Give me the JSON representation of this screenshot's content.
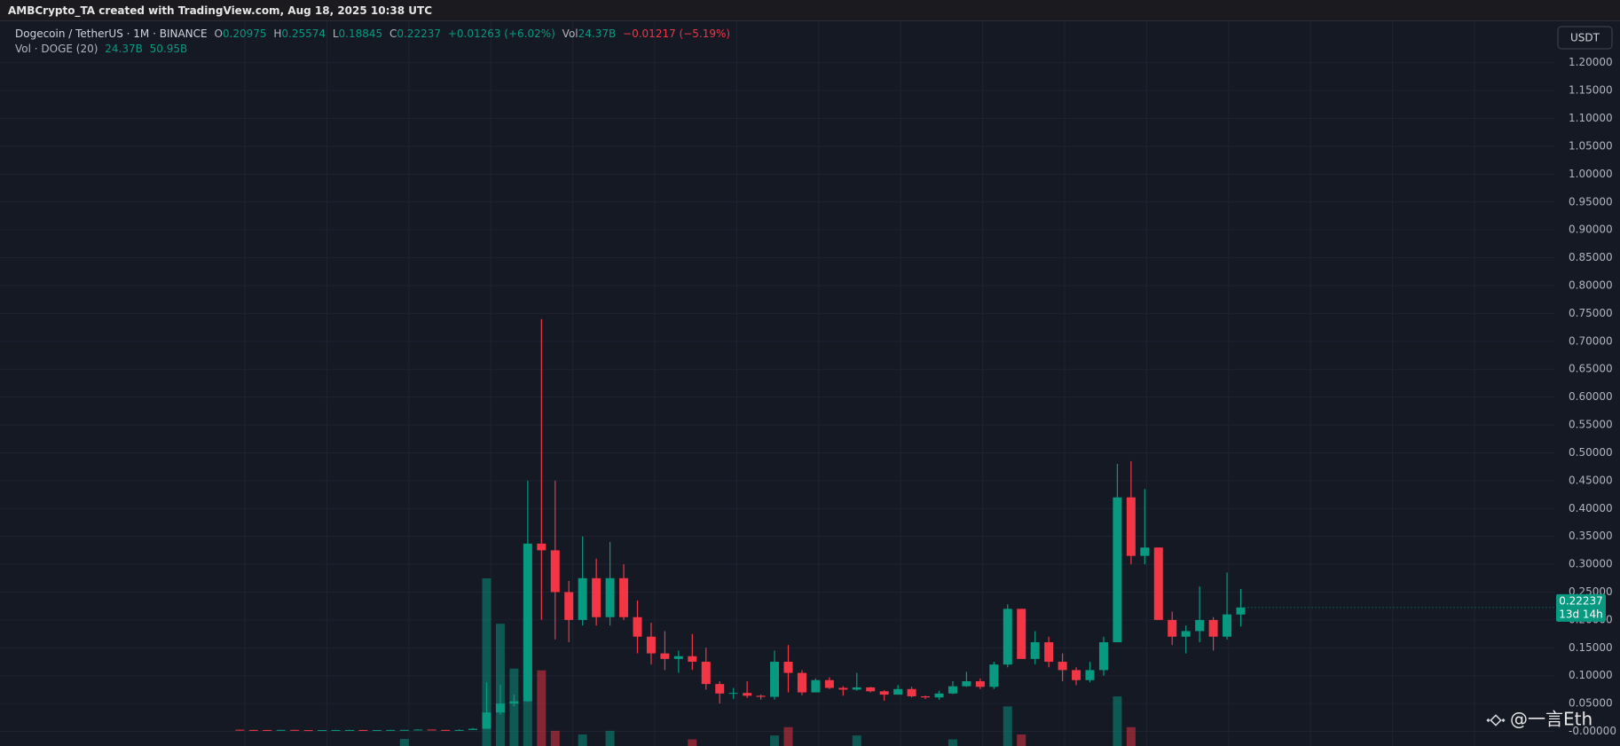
{
  "chart_data": {
    "type": "candlestick",
    "attribution": "AMBCrypto_TA created with TradingView.com, Aug 18, 2025 10:38 UTC",
    "symbol": "Dogecoin / TetherUS · 1M · BINANCE",
    "ohlc_labels": [
      "O",
      "H",
      "L",
      "C"
    ],
    "change": "+0.01263 (+6.02%)",
    "volume_label": "Vol",
    "volume_text": "24.37B",
    "volume_change": "−0.01217 (−5.19%)",
    "indicator": "Vol · DOGE (20)",
    "indicator_values": [
      "24.37B",
      "50.95B"
    ],
    "currency": "USDT",
    "countdown": "13d 14h",
    "watermark": "@一言Eth",
    "up_color": "#089981",
    "down_color": "#f23645",
    "grid": true,
    "ylim": [
      -0.0262,
      1.2744
    ],
    "yticks": [
      {
        "value": 0,
        "label": "-0.00000"
      },
      {
        "value": 0.05,
        "label": "0.05000"
      },
      {
        "value": 0.1,
        "label": "0.10000"
      },
      {
        "value": 0.15,
        "label": "0.15000"
      },
      {
        "value": 0.2,
        "label": "0.20000"
      },
      {
        "value": 0.25,
        "label": "0.25000"
      },
      {
        "value": 0.3,
        "label": "0.30000"
      },
      {
        "value": 0.35,
        "label": "0.35000"
      },
      {
        "value": 0.4,
        "label": "0.40000"
      },
      {
        "value": 0.45,
        "label": "0.45000"
      },
      {
        "value": 0.5,
        "label": "0.50000"
      },
      {
        "value": 0.55,
        "label": "0.55000"
      },
      {
        "value": 0.6,
        "label": "0.60000"
      },
      {
        "value": 0.65,
        "label": "0.65000"
      },
      {
        "value": 0.7,
        "label": "0.70000"
      },
      {
        "value": 0.75,
        "label": "0.75000"
      },
      {
        "value": 0.8,
        "label": "0.80000"
      },
      {
        "value": 0.85,
        "label": "0.85000"
      },
      {
        "value": 0.9,
        "label": "0.90000"
      },
      {
        "value": 0.95,
        "label": "0.95000"
      },
      {
        "value": 1,
        "label": "1.00000"
      },
      {
        "value": 1.05,
        "label": "1.05000"
      },
      {
        "value": 1.1,
        "label": "1.10000"
      },
      {
        "value": 1.15,
        "label": "1.15000"
      },
      {
        "value": 1.2,
        "label": "1.20000"
      }
    ],
    "categories": [
      null,
      null,
      null,
      null,
      null,
      null,
      null,
      null,
      null,
      null,
      null,
      null,
      null,
      null,
      null,
      null,
      null,
      null,
      null,
      null,
      null,
      null,
      null,
      null,
      null,
      null,
      null,
      null,
      null,
      null,
      null,
      null,
      null,
      null,
      null,
      null,
      null,
      null,
      null,
      null,
      null,
      null,
      null,
      null,
      null,
      null,
      null,
      null,
      null,
      null,
      null,
      null,
      null,
      null,
      null,
      null,
      null,
      null,
      null,
      null,
      null,
      null,
      null,
      null,
      null,
      null,
      null,
      null,
      null,
      null,
      null,
      null,
      null,
      null
    ],
    "open": [
      0.003,
      0.0026,
      0.0025,
      0.0024,
      0.0027,
      0.0023,
      0.002,
      0.0024,
      0.0025,
      0.0025,
      0.0019,
      0.0024,
      0.0026,
      0.0027,
      0.0033,
      0.0026,
      0.0024,
      0.0026,
      0.0047,
      0.034,
      0.05,
      0.054,
      0.337,
      0.325,
      0.25,
      0.2,
      0.275,
      0.205,
      0.275,
      0.205,
      0.17,
      0.14,
      0.13,
      0.135,
      0.125,
      0.085,
      0.068,
      0.069,
      0.064,
      0.062,
      0.125,
      0.105,
      0.07,
      0.092,
      0.078,
      0.075,
      0.079,
      0.072,
      0.066,
      0.076,
      0.063,
      0.061,
      0.068,
      0.081,
      0.09,
      0.08,
      0.12,
      0.22,
      0.13,
      0.16,
      0.125,
      0.11,
      0.092,
      0.11,
      0.16,
      0.42,
      0.315,
      0.33,
      0.2,
      0.17,
      0.18,
      0.2,
      0.17,
      0.20975
    ],
    "high": [
      0.0034,
      0.0028,
      0.0027,
      0.003,
      0.0029,
      0.0024,
      0.0026,
      0.0028,
      0.0029,
      0.0026,
      0.0025,
      0.0028,
      0.0029,
      0.0039,
      0.0034,
      0.0028,
      0.0038,
      0.006,
      0.088,
      0.084,
      0.066,
      0.45,
      0.74,
      0.45,
      0.27,
      0.35,
      0.31,
      0.34,
      0.3,
      0.235,
      0.195,
      0.18,
      0.145,
      0.175,
      0.15,
      0.09,
      0.078,
      0.09,
      0.066,
      0.145,
      0.155,
      0.11,
      0.095,
      0.097,
      0.081,
      0.105,
      0.08,
      0.074,
      0.083,
      0.08,
      0.064,
      0.073,
      0.09,
      0.107,
      0.095,
      0.125,
      0.228,
      0.22,
      0.18,
      0.17,
      0.14,
      0.115,
      0.125,
      0.17,
      0.48,
      0.485,
      0.435,
      0.33,
      0.215,
      0.19,
      0.26,
      0.205,
      0.285,
      0.25574
    ],
    "low": [
      0.0024,
      0.0023,
      0.0022,
      0.0022,
      0.0021,
      0.0019,
      0.002,
      0.0023,
      0.0023,
      0.0011,
      0.0018,
      0.0022,
      0.0024,
      0.0026,
      0.0025,
      0.0024,
      0.0022,
      0.0025,
      0.0045,
      0.03,
      0.045,
      0.053,
      0.2,
      0.165,
      0.16,
      0.19,
      0.19,
      0.19,
      0.2,
      0.14,
      0.12,
      0.11,
      0.105,
      0.11,
      0.075,
      0.05,
      0.058,
      0.06,
      0.057,
      0.057,
      0.07,
      0.065,
      0.07,
      0.076,
      0.064,
      0.073,
      0.07,
      0.055,
      0.066,
      0.061,
      0.058,
      0.057,
      0.067,
      0.08,
      0.076,
      0.076,
      0.115,
      0.13,
      0.12,
      0.115,
      0.09,
      0.083,
      0.088,
      0.1,
      0.16,
      0.3,
      0.3,
      0.2,
      0.155,
      0.14,
      0.16,
      0.145,
      0.165,
      0.18845
    ],
    "close": [
      0.0026,
      0.0025,
      0.0024,
      0.0027,
      0.0023,
      0.002,
      0.0024,
      0.0025,
      0.0025,
      0.0019,
      0.0024,
      0.0026,
      0.0027,
      0.0033,
      0.0026,
      0.0024,
      0.0026,
      0.0047,
      0.034,
      0.05,
      0.054,
      0.337,
      0.325,
      0.25,
      0.2,
      0.275,
      0.205,
      0.275,
      0.205,
      0.17,
      0.14,
      0.13,
      0.135,
      0.125,
      0.085,
      0.068,
      0.069,
      0.064,
      0.062,
      0.125,
      0.105,
      0.07,
      0.092,
      0.078,
      0.075,
      0.079,
      0.072,
      0.066,
      0.076,
      0.063,
      0.061,
      0.068,
      0.081,
      0.09,
      0.08,
      0.12,
      0.22,
      0.13,
      0.16,
      0.125,
      0.11,
      0.092,
      0.11,
      0.16,
      0.42,
      0.315,
      0.33,
      0.2,
      0.17,
      0.18,
      0.2,
      0.17,
      0.21,
      0.22237
    ],
    "volume": [
      10,
      8,
      6,
      9,
      8,
      7,
      12,
      10,
      15,
      30,
      14,
      12,
      62,
      25,
      18,
      15,
      28,
      30,
      720,
      534,
      350,
      563,
      343,
      95,
      30,
      80,
      30,
      95,
      30,
      30,
      25,
      20,
      25,
      60,
      30,
      25,
      18,
      22,
      15,
      76,
      110,
      30,
      22,
      20,
      18,
      76,
      15,
      12,
      14,
      12,
      10,
      15,
      60,
      20,
      18,
      30,
      195,
      80,
      30,
      25,
      18,
      20,
      30,
      30,
      236,
      110,
      30,
      30,
      20,
      25,
      30,
      20,
      25,
      24.37
    ]
  }
}
